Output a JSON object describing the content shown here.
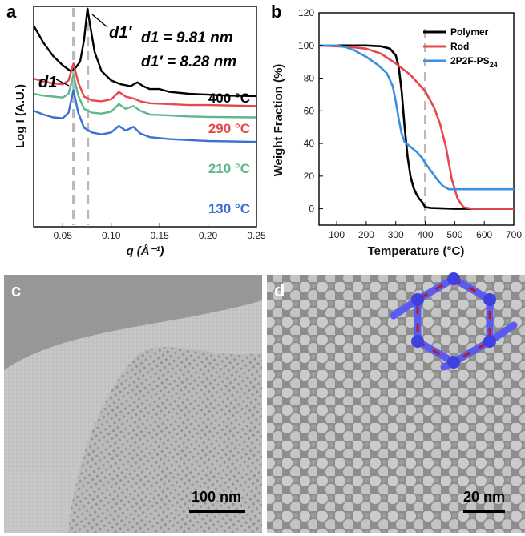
{
  "panels": {
    "a": {
      "letter": "a"
    },
    "b": {
      "letter": "b"
    },
    "c": {
      "letter": "c",
      "scale": "100 nm"
    },
    "d": {
      "letter": "d",
      "scale": "20 nm"
    }
  },
  "chart_data": [
    {
      "type": "line",
      "panel": "a",
      "xlabel": "q (Å⁻¹)",
      "ylabel": "Log I (A.U.)",
      "xlim": [
        0.02,
        0.25
      ],
      "x_ticks": [
        "0.05",
        "0.10",
        "0.15",
        "0.20",
        "0.25"
      ],
      "annotations": {
        "d1_value": "d1 = 9.81 nm",
        "d1p_value": "d1′ = 8.28 nm",
        "d1_marker": "d1",
        "d1p_marker": "d1′"
      },
      "reference_lines_q": [
        0.061,
        0.076
      ],
      "series": [
        {
          "name": "400 °C",
          "color": "#000000",
          "points": [
            [
              0.02,
              100
            ],
            [
              0.03,
              82
            ],
            [
              0.04,
              68
            ],
            [
              0.05,
              58
            ],
            [
              0.058,
              52
            ],
            [
              0.063,
              55
            ],
            [
              0.068,
              62
            ],
            [
              0.072,
              85
            ],
            [
              0.0755,
              118
            ],
            [
              0.079,
              96
            ],
            [
              0.083,
              72
            ],
            [
              0.09,
              52
            ],
            [
              0.1,
              42
            ],
            [
              0.11,
              38
            ],
            [
              0.12,
              36
            ],
            [
              0.127,
              40
            ],
            [
              0.133,
              36
            ],
            [
              0.14,
              33
            ],
            [
              0.15,
              33
            ],
            [
              0.16,
              30
            ],
            [
              0.18,
              28
            ],
            [
              0.2,
              27
            ],
            [
              0.22,
              26
            ],
            [
              0.25,
              25.5
            ]
          ]
        },
        {
          "name": "290 °C",
          "color": "#e5484d",
          "points": [
            [
              0.02,
              44
            ],
            [
              0.03,
              41
            ],
            [
              0.04,
              39
            ],
            [
              0.05,
              38
            ],
            [
              0.056,
              42
            ],
            [
              0.061,
              60
            ],
            [
              0.066,
              40
            ],
            [
              0.072,
              25
            ],
            [
              0.08,
              21
            ],
            [
              0.09,
              20
            ],
            [
              0.1,
              22
            ],
            [
              0.108,
              30
            ],
            [
              0.115,
              25
            ],
            [
              0.123,
              23
            ],
            [
              0.13,
              20
            ],
            [
              0.14,
              18
            ],
            [
              0.16,
              17
            ],
            [
              0.18,
              16
            ],
            [
              0.2,
              16
            ],
            [
              0.25,
              15
            ]
          ]
        },
        {
          "name": "210 °C",
          "color": "#5cb88a",
          "points": [
            [
              0.02,
              28
            ],
            [
              0.03,
              26
            ],
            [
              0.04,
              25
            ],
            [
              0.05,
              24
            ],
            [
              0.056,
              28
            ],
            [
              0.061,
              48
            ],
            [
              0.066,
              26
            ],
            [
              0.072,
              12
            ],
            [
              0.08,
              8
            ],
            [
              0.09,
              7
            ],
            [
              0.1,
              9
            ],
            [
              0.108,
              17
            ],
            [
              0.115,
              12
            ],
            [
              0.123,
              15
            ],
            [
              0.13,
              10
            ],
            [
              0.14,
              6
            ],
            [
              0.16,
              5
            ],
            [
              0.18,
              4
            ],
            [
              0.2,
              3.5
            ],
            [
              0.25,
              3
            ]
          ]
        },
        {
          "name": "130 °C",
          "color": "#3b6fd4",
          "points": [
            [
              0.02,
              10
            ],
            [
              0.03,
              6
            ],
            [
              0.04,
              3
            ],
            [
              0.05,
              2
            ],
            [
              0.056,
              8
            ],
            [
              0.061,
              32
            ],
            [
              0.066,
              8
            ],
            [
              0.072,
              -8
            ],
            [
              0.08,
              -13
            ],
            [
              0.09,
              -15
            ],
            [
              0.1,
              -13
            ],
            [
              0.108,
              -6
            ],
            [
              0.115,
              -11
            ],
            [
              0.123,
              -7
            ],
            [
              0.13,
              -14
            ],
            [
              0.14,
              -18
            ],
            [
              0.16,
              -20
            ],
            [
              0.18,
              -21
            ],
            [
              0.2,
              -22
            ],
            [
              0.25,
              -23
            ]
          ]
        }
      ]
    },
    {
      "type": "line",
      "panel": "b",
      "xlabel": "Temperature (°C)",
      "ylabel": "Weight Fraction (%)",
      "xlim": [
        40,
        700
      ],
      "ylim": [
        -10,
        120
      ],
      "x_ticks": [
        100,
        200,
        300,
        400,
        500,
        600,
        700
      ],
      "y_ticks": [
        0,
        20,
        40,
        60,
        80,
        100,
        120
      ],
      "legend_position": "top-right",
      "reference_line_x": 400,
      "series": [
        {
          "name": "Polymer",
          "color": "#000000",
          "points": [
            [
              40,
              100
            ],
            [
              100,
              100
            ],
            [
              200,
              100
            ],
            [
              250,
              99.5
            ],
            [
              280,
              98
            ],
            [
              300,
              94
            ],
            [
              310,
              87
            ],
            [
              320,
              72
            ],
            [
              330,
              50
            ],
            [
              340,
              32
            ],
            [
              350,
              20
            ],
            [
              360,
              13
            ],
            [
              370,
              9
            ],
            [
              380,
              6
            ],
            [
              390,
              4
            ],
            [
              400,
              1
            ],
            [
              420,
              0.5
            ],
            [
              500,
              0
            ],
            [
              700,
              0
            ]
          ]
        },
        {
          "name": "Rod",
          "color": "#e5484d",
          "points": [
            [
              40,
              100
            ],
            [
              100,
              99.5
            ],
            [
              150,
              99
            ],
            [
              200,
              98
            ],
            [
              250,
              95
            ],
            [
              300,
              89
            ],
            [
              350,
              82
            ],
            [
              400,
              72
            ],
            [
              430,
              62
            ],
            [
              450,
              52
            ],
            [
              470,
              38
            ],
            [
              490,
              18
            ],
            [
              510,
              6
            ],
            [
              530,
              1
            ],
            [
              560,
              0
            ],
            [
              700,
              0
            ]
          ]
        },
        {
          "name": "2P2F-PS24",
          "color": "#3b8ee0",
          "legend_label": "2P2F-PS",
          "legend_sub": "24",
          "points": [
            [
              40,
              100
            ],
            [
              100,
              100
            ],
            [
              130,
              99
            ],
            [
              160,
              97
            ],
            [
              200,
              93
            ],
            [
              240,
              88
            ],
            [
              270,
              83
            ],
            [
              290,
              75
            ],
            [
              300,
              66
            ],
            [
              310,
              55
            ],
            [
              320,
              46
            ],
            [
              330,
              41
            ],
            [
              350,
              38
            ],
            [
              370,
              35
            ],
            [
              390,
              31
            ],
            [
              400,
              28
            ],
            [
              420,
              23
            ],
            [
              440,
              18
            ],
            [
              460,
              14
            ],
            [
              480,
              12
            ],
            [
              500,
              12
            ],
            [
              700,
              12
            ]
          ]
        }
      ]
    }
  ]
}
